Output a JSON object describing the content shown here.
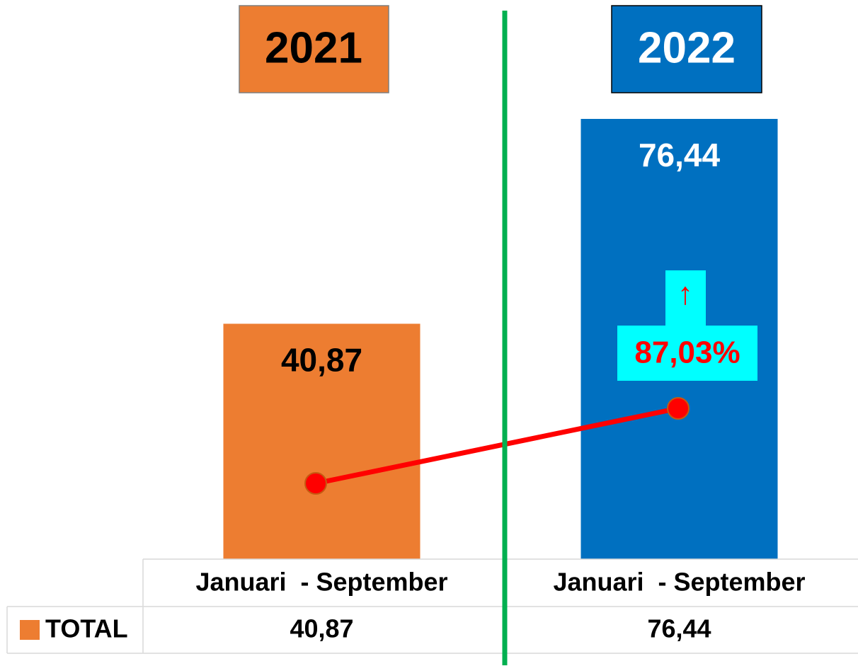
{
  "chart_data": {
    "type": "bar",
    "headers": [
      "2021",
      "2022"
    ],
    "categories": [
      "Januari  - September",
      "Januari  - September"
    ],
    "series": [
      {
        "name": "TOTAL",
        "colors": [
          "#ed7d31",
          "#0070c0"
        ],
        "values": [
          40.87,
          76.44
        ],
        "value_labels": [
          "40,87",
          "76,44"
        ]
      }
    ],
    "annotation": {
      "arrow": "↑",
      "text": "87,03%"
    }
  }
}
